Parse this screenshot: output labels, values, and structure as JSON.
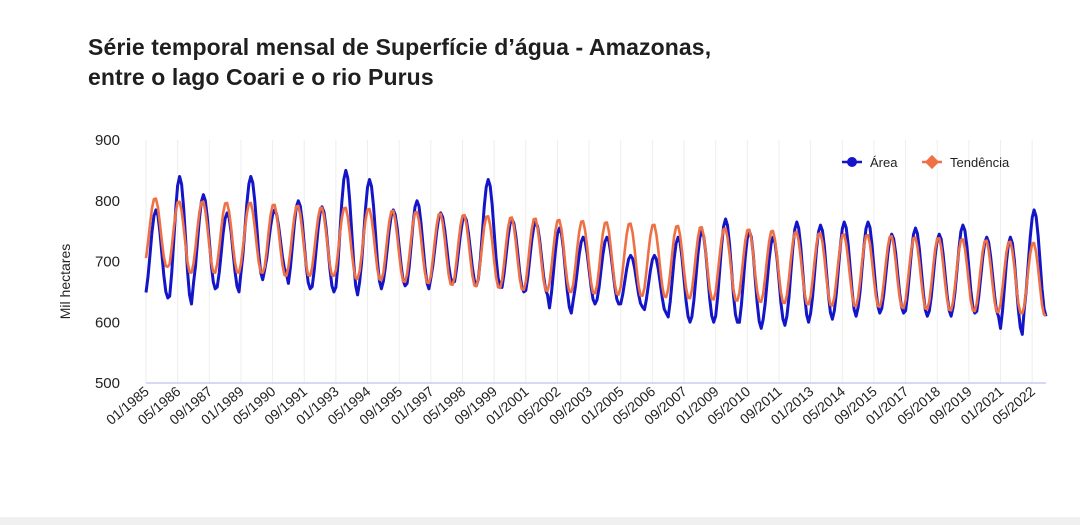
{
  "title": {
    "line1": "Série temporal mensal de Superfície d’água - Amazonas,",
    "line2": "entre o lago Coari e o rio Purus"
  },
  "chart_data": {
    "type": "line",
    "ylabel": "Mil hectares",
    "xlabel": "",
    "ylim": [
      500,
      900
    ],
    "yticks": [
      500,
      600,
      700,
      800,
      900
    ],
    "x_start": "01/1985",
    "x_end": "12/2022",
    "x_tick_labels": [
      "01/1985",
      "05/1986",
      "09/1987",
      "01/1989",
      "05/1990",
      "09/1991",
      "01/1993",
      "05/1994",
      "09/1995",
      "01/1997",
      "05/1998",
      "09/1999",
      "01/2001",
      "05/2002",
      "09/2003",
      "01/2005",
      "05/2006",
      "09/2007",
      "01/2009",
      "05/2010",
      "09/2011",
      "01/2013",
      "05/2014",
      "09/2015",
      "01/2017",
      "05/2018",
      "09/2019",
      "01/2021",
      "05/2022"
    ],
    "grid": "vertical",
    "legend_position": "top-right",
    "series": [
      {
        "name": "Área",
        "color": "#1414c8",
        "values_per_year": [
          {
            "year": 1985,
            "min": 640,
            "max": 785
          },
          {
            "year": 1986,
            "min": 630,
            "max": 840
          },
          {
            "year": 1987,
            "min": 655,
            "max": 810
          },
          {
            "year": 1988,
            "min": 650,
            "max": 780
          },
          {
            "year": 1989,
            "min": 670,
            "max": 840
          },
          {
            "year": 1990,
            "min": 680,
            "max": 785
          },
          {
            "year": 1991,
            "min": 655,
            "max": 800
          },
          {
            "year": 1992,
            "min": 650,
            "max": 790
          },
          {
            "year": 1993,
            "min": 645,
            "max": 850
          },
          {
            "year": 1994,
            "min": 655,
            "max": 835
          },
          {
            "year": 1995,
            "min": 660,
            "max": 785
          },
          {
            "year": 1996,
            "min": 655,
            "max": 800
          },
          {
            "year": 1997,
            "min": 665,
            "max": 780
          },
          {
            "year": 1998,
            "min": 660,
            "max": 775
          },
          {
            "year": 1999,
            "min": 660,
            "max": 835
          },
          {
            "year": 2000,
            "min": 650,
            "max": 770
          },
          {
            "year": 2001,
            "min": 645,
            "max": 765
          },
          {
            "year": 2002,
            "min": 615,
            "max": 755
          },
          {
            "year": 2003,
            "min": 630,
            "max": 740
          },
          {
            "year": 2004,
            "min": 630,
            "max": 740
          },
          {
            "year": 2005,
            "min": 625,
            "max": 710
          },
          {
            "year": 2006,
            "min": 615,
            "max": 710
          },
          {
            "year": 2007,
            "min": 600,
            "max": 740
          },
          {
            "year": 2008,
            "min": 600,
            "max": 750
          },
          {
            "year": 2009,
            "min": 600,
            "max": 770
          },
          {
            "year": 2010,
            "min": 590,
            "max": 750
          },
          {
            "year": 2011,
            "min": 595,
            "max": 740
          },
          {
            "year": 2012,
            "min": 600,
            "max": 765
          },
          {
            "year": 2013,
            "min": 605,
            "max": 760
          },
          {
            "year": 2014,
            "min": 610,
            "max": 765
          },
          {
            "year": 2015,
            "min": 615,
            "max": 765
          },
          {
            "year": 2016,
            "min": 615,
            "max": 745
          },
          {
            "year": 2017,
            "min": 610,
            "max": 755
          },
          {
            "year": 2018,
            "min": 610,
            "max": 745
          },
          {
            "year": 2019,
            "min": 615,
            "max": 760
          },
          {
            "year": 2020,
            "min": 610,
            "max": 740
          },
          {
            "year": 2021,
            "min": 580,
            "max": 740
          },
          {
            "year": 2022,
            "min": 610,
            "max": 785
          }
        ]
      },
      {
        "name": "Tendência",
        "color": "#ef7045",
        "values_per_year": [
          {
            "year": 1985,
            "min": 690,
            "max": 805
          },
          {
            "year": 1986,
            "min": 680,
            "max": 800
          },
          {
            "year": 1987,
            "min": 680,
            "max": 800
          },
          {
            "year": 1988,
            "min": 680,
            "max": 798
          },
          {
            "year": 1989,
            "min": 680,
            "max": 798
          },
          {
            "year": 1990,
            "min": 675,
            "max": 795
          },
          {
            "year": 1991,
            "min": 675,
            "max": 793
          },
          {
            "year": 1992,
            "min": 675,
            "max": 790
          },
          {
            "year": 1993,
            "min": 670,
            "max": 790
          },
          {
            "year": 1994,
            "min": 668,
            "max": 788
          },
          {
            "year": 1995,
            "min": 665,
            "max": 785
          },
          {
            "year": 1996,
            "min": 663,
            "max": 783
          },
          {
            "year": 1997,
            "min": 660,
            "max": 780
          },
          {
            "year": 1998,
            "min": 658,
            "max": 778
          },
          {
            "year": 1999,
            "min": 655,
            "max": 776
          },
          {
            "year": 2000,
            "min": 652,
            "max": 774
          },
          {
            "year": 2001,
            "min": 650,
            "max": 772
          },
          {
            "year": 2002,
            "min": 648,
            "max": 770
          },
          {
            "year": 2003,
            "min": 646,
            "max": 768
          },
          {
            "year": 2004,
            "min": 644,
            "max": 766
          },
          {
            "year": 2005,
            "min": 642,
            "max": 764
          },
          {
            "year": 2006,
            "min": 640,
            "max": 762
          },
          {
            "year": 2007,
            "min": 638,
            "max": 760
          },
          {
            "year": 2008,
            "min": 636,
            "max": 758
          },
          {
            "year": 2009,
            "min": 634,
            "max": 756
          },
          {
            "year": 2010,
            "min": 632,
            "max": 754
          },
          {
            "year": 2011,
            "min": 630,
            "max": 752
          },
          {
            "year": 2012,
            "min": 628,
            "max": 750
          },
          {
            "year": 2013,
            "min": 626,
            "max": 748
          },
          {
            "year": 2014,
            "min": 625,
            "max": 746
          },
          {
            "year": 2015,
            "min": 624,
            "max": 745
          },
          {
            "year": 2016,
            "min": 622,
            "max": 743
          },
          {
            "year": 2017,
            "min": 620,
            "max": 741
          },
          {
            "year": 2018,
            "min": 618,
            "max": 740
          },
          {
            "year": 2019,
            "min": 617,
            "max": 738
          },
          {
            "year": 2020,
            "min": 615,
            "max": 736
          },
          {
            "year": 2021,
            "min": 613,
            "max": 734
          },
          {
            "year": 2022,
            "min": 610,
            "max": 732
          }
        ]
      }
    ]
  }
}
